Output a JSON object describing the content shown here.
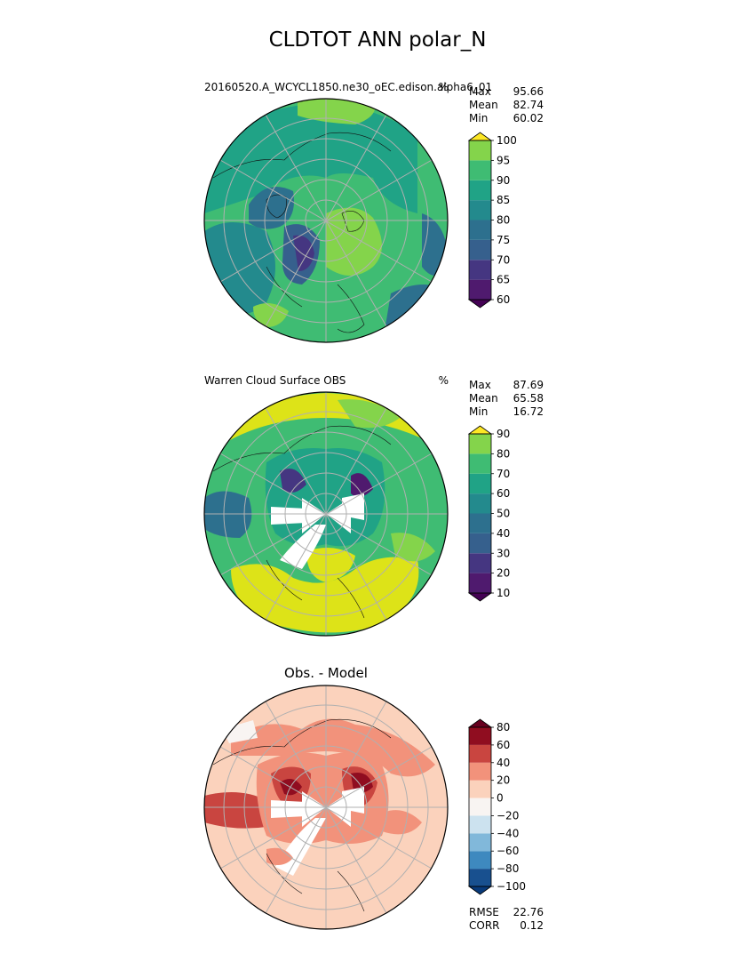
{
  "figure": {
    "title": "CLDTOT ANN polar_N"
  },
  "chart_data": [
    {
      "type": "heatmap",
      "projection": "north-polar-stereographic",
      "title": "",
      "left_label": "20160520.A_WCYCL1850.ne30_oEC.edison.alpha6_01",
      "units": "%",
      "stats": [
        {
          "label": "Max",
          "value": "95.66"
        },
        {
          "label": "Mean",
          "value": "82.74"
        },
        {
          "label": "Min",
          "value": "60.02"
        }
      ],
      "colorbar": {
        "levels": [
          60,
          65,
          70,
          75,
          80,
          85,
          90,
          95,
          100
        ],
        "tick_labels": [
          "60",
          "65",
          "70",
          "75",
          "80",
          "85",
          "90",
          "95",
          "100"
        ],
        "colors": [
          "#4f1a6e",
          "#453681",
          "#36608d",
          "#2d708e",
          "#238a8d",
          "#20a386",
          "#3fbc73",
          "#84d44b",
          "#dde318"
        ],
        "extend": "both",
        "min_color": "#440154",
        "max_color": "#fde725"
      }
    },
    {
      "type": "heatmap",
      "projection": "north-polar-stereographic",
      "title": "",
      "left_label": "Warren Cloud Surface OBS",
      "units": "%",
      "stats": [
        {
          "label": "Max",
          "value": "87.69"
        },
        {
          "label": "Mean",
          "value": "65.58"
        },
        {
          "label": "Min",
          "value": "16.72"
        }
      ],
      "colorbar": {
        "levels": [
          10,
          20,
          30,
          40,
          50,
          60,
          70,
          80,
          90
        ],
        "tick_labels": [
          "10",
          "20",
          "30",
          "40",
          "50",
          "60",
          "70",
          "80",
          "90"
        ],
        "colors": [
          "#4f1a6e",
          "#453681",
          "#36608d",
          "#2d708e",
          "#238a8d",
          "#20a386",
          "#3fbc73",
          "#84d44b",
          "#dde318"
        ],
        "extend": "both",
        "min_color": "#440154",
        "max_color": "#fde725"
      }
    },
    {
      "type": "heatmap",
      "projection": "north-polar-stereographic",
      "title": "Obs. - Model",
      "left_label": "",
      "units": "",
      "stats": [
        {
          "label": "RMSE",
          "value": "22.76"
        },
        {
          "label": "CORR",
          "value": "0.12"
        }
      ],
      "colorbar": {
        "levels": [
          -100,
          -80,
          -60,
          -40,
          -20,
          0,
          20,
          40,
          60,
          80
        ],
        "tick_labels": [
          "−100",
          "−80",
          "−60",
          "−40",
          "−20",
          "0",
          "20",
          "40",
          "60",
          "80"
        ],
        "colors": [
          "#18508f",
          "#3e89bf",
          "#81b8da",
          "#cce2ef",
          "#f8f4f2",
          "#fbd2bc",
          "#f2927b",
          "#c94540",
          "#900d20"
        ],
        "extend": "both",
        "min_color": "#083a7a",
        "max_color": "#67001f"
      }
    }
  ]
}
